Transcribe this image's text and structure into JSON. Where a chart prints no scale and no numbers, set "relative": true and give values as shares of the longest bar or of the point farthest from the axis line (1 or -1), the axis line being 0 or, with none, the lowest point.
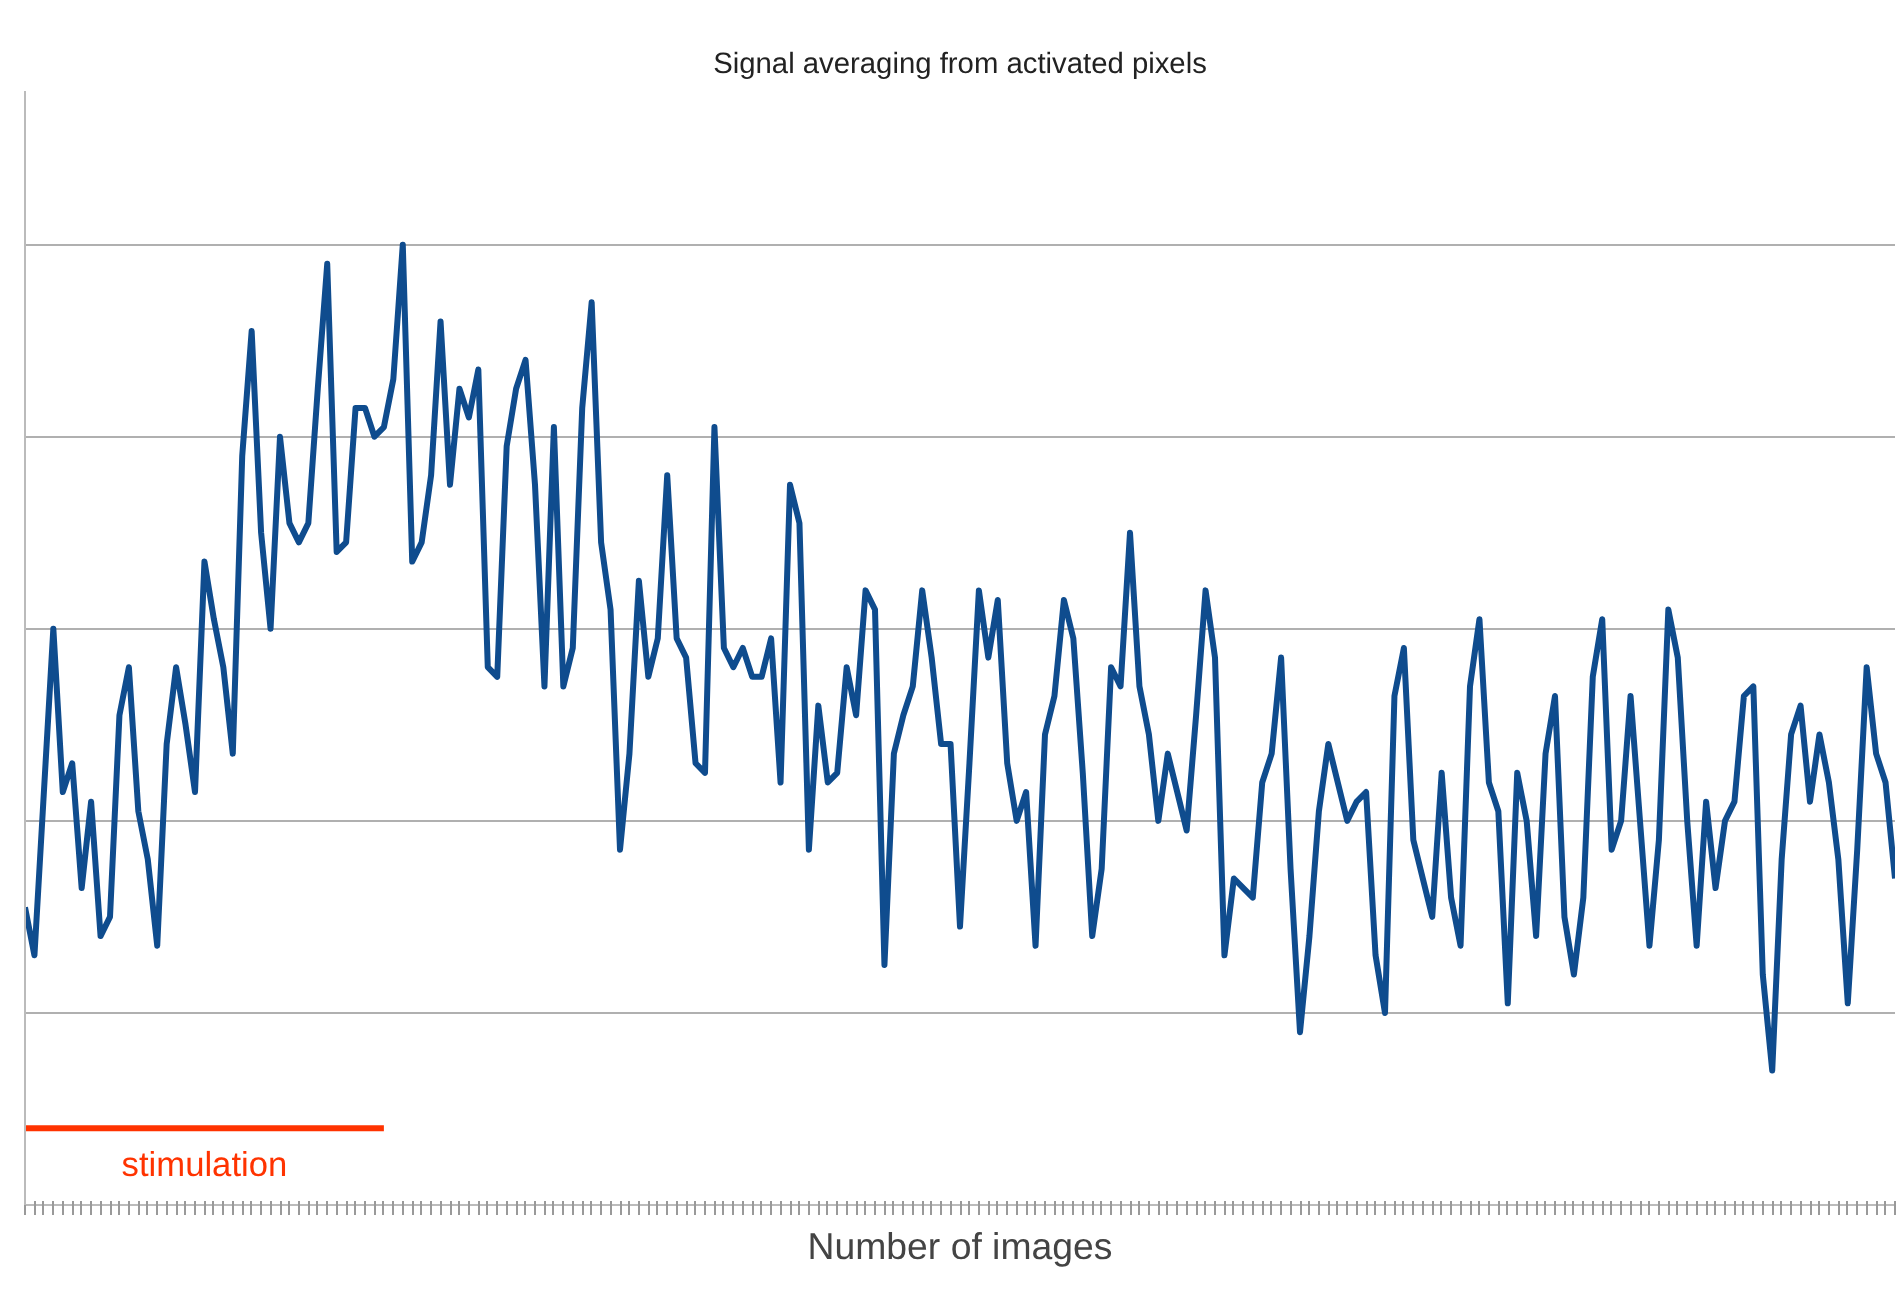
{
  "chart_data": {
    "type": "line",
    "title": "Signal averaging from activated pixels",
    "xlabel": "Number of images",
    "relative": true,
    "grid": "y",
    "line_style": "solid",
    "categories": [
      null,
      null,
      null,
      null,
      null,
      null,
      null,
      null,
      null,
      null,
      null,
      null,
      null,
      null,
      null,
      null,
      null,
      null,
      null,
      null,
      null,
      null,
      null,
      null,
      null,
      null,
      null,
      null,
      null,
      null,
      null,
      null,
      null,
      null,
      null,
      null,
      null,
      null,
      null,
      null,
      null,
      null,
      null,
      null,
      null,
      null,
      null,
      null,
      null,
      null,
      null,
      null,
      null,
      null,
      null,
      null,
      null,
      null,
      null,
      null,
      null,
      null,
      null,
      null,
      null,
      null,
      null,
      null,
      null,
      null,
      null,
      null,
      null,
      null,
      null,
      null,
      null,
      null,
      null,
      null,
      null,
      null,
      null,
      null,
      null,
      null,
      null,
      null,
      null,
      null,
      null,
      null,
      null,
      null,
      null,
      null,
      null,
      null,
      null,
      null,
      null,
      null,
      null,
      null,
      null,
      null,
      null,
      null,
      null,
      null,
      null,
      null,
      null,
      null,
      null,
      null,
      null,
      null,
      null,
      null,
      null,
      null,
      null,
      null,
      null,
      null,
      null,
      null,
      null,
      null,
      null,
      null,
      null,
      null,
      null,
      null,
      null,
      null,
      null,
      null,
      null,
      null,
      null,
      null,
      null,
      null,
      null,
      null,
      null,
      null,
      null,
      null,
      null,
      null,
      null,
      null,
      null,
      null,
      null,
      null,
      null,
      null,
      null,
      null,
      null,
      null,
      null,
      null,
      null,
      null,
      null,
      null,
      null,
      null,
      null,
      null,
      null,
      null,
      null,
      null,
      null,
      null,
      null,
      null,
      null,
      null,
      null,
      null,
      null,
      null,
      null,
      null,
      null,
      null,
      null,
      null,
      null,
      null,
      null
    ],
    "series": [
      {
        "color": "#0f4c8e",
        "values": [
          0.31,
          0.26,
          0.43,
          0.6,
          0.43,
          0.46,
          0.33,
          0.42,
          0.28,
          0.3,
          0.51,
          0.56,
          0.41,
          0.36,
          0.27,
          0.48,
          0.56,
          0.5,
          0.43,
          0.67,
          0.61,
          0.56,
          0.47,
          0.78,
          0.91,
          0.7,
          0.6,
          0.8,
          0.71,
          0.69,
          0.71,
          0.85,
          0.98,
          0.68,
          0.69,
          0.83,
          0.83,
          0.8,
          0.81,
          0.86,
          1.0,
          0.67,
          0.69,
          0.76,
          0.92,
          0.75,
          0.85,
          0.82,
          0.87,
          0.56,
          0.55,
          0.79,
          0.85,
          0.88,
          0.75,
          0.54,
          0.81,
          0.54,
          0.58,
          0.83,
          0.94,
          0.69,
          0.62,
          0.37,
          0.47,
          0.65,
          0.55,
          0.59,
          0.76,
          0.59,
          0.57,
          0.46,
          0.45,
          0.81,
          0.58,
          0.56,
          0.58,
          0.55,
          0.55,
          0.59,
          0.44,
          0.75,
          0.71,
          0.37,
          0.52,
          0.44,
          0.45,
          0.56,
          0.51,
          0.64,
          0.62,
          0.25,
          0.47,
          0.51,
          0.54,
          0.64,
          0.57,
          0.48,
          0.48,
          0.29,
          0.46,
          0.64,
          0.57,
          0.63,
          0.46,
          0.4,
          0.43,
          0.27,
          0.49,
          0.53,
          0.63,
          0.59,
          0.45,
          0.28,
          0.35,
          0.56,
          0.54,
          0.7,
          0.54,
          0.49,
          0.4,
          0.47,
          0.43,
          0.39,
          0.51,
          0.64,
          0.57,
          0.26,
          0.34,
          0.33,
          0.32,
          0.44,
          0.47,
          0.57,
          0.35,
          0.18,
          0.28,
          0.41,
          0.48,
          0.44,
          0.4,
          0.42,
          0.43,
          0.26,
          0.2,
          0.53,
          0.58,
          0.38,
          0.34,
          0.3,
          0.45,
          0.32,
          0.27,
          0.54,
          0.61,
          0.44,
          0.41,
          0.21,
          0.45,
          0.4,
          0.28,
          0.47,
          0.53,
          0.3,
          0.24,
          0.32,
          0.55,
          0.61,
          0.37,
          0.4,
          0.53,
          0.4,
          0.27,
          0.38,
          0.62,
          0.57,
          0.4,
          0.27,
          0.42,
          0.33,
          0.4,
          0.42,
          0.53,
          0.54,
          0.24,
          0.14,
          0.36,
          0.49,
          0.52,
          0.42,
          0.49,
          0.44,
          0.36,
          0.21,
          0.37,
          0.56,
          0.47,
          0.44,
          0.34
        ]
      },
      {
        "name": "stimulation",
        "color": "#ff3300",
        "values": [
          0.08,
          0.08,
          0.08,
          0.08,
          0.08,
          0.08,
          0.08,
          0.08,
          0.08,
          0.08,
          0.08,
          0.08,
          0.08,
          0.08,
          0.08,
          0.08,
          0.08,
          0.08,
          0.08,
          0.08,
          0.08,
          0.08,
          0.08,
          0.08,
          0.08,
          0.08,
          0.08,
          0.08,
          0.08,
          0.08,
          0.08,
          0.08,
          0.08,
          0.08,
          0.08,
          0.08,
          0.08,
          0.08,
          0.08,
          null,
          null,
          null,
          null,
          null,
          null,
          null,
          null,
          null,
          null,
          null,
          null,
          null,
          null,
          null,
          null,
          null,
          null,
          null,
          null,
          null,
          null,
          null,
          null,
          null,
          null,
          null,
          null,
          null,
          null,
          null,
          null,
          null,
          null,
          null,
          null,
          null,
          null,
          null,
          null,
          null,
          null,
          null,
          null,
          null,
          null,
          null,
          null,
          null,
          null,
          null,
          null,
          null,
          null,
          null,
          null,
          null,
          null,
          null,
          null,
          null,
          null,
          null,
          null,
          null,
          null,
          null,
          null,
          null,
          null,
          null,
          null,
          null,
          null,
          null,
          null,
          null,
          null,
          null,
          null,
          null,
          null,
          null,
          null,
          null,
          null,
          null,
          null,
          null,
          null,
          null,
          null,
          null,
          null,
          null,
          null,
          null,
          null,
          null,
          null,
          null,
          null,
          null,
          null,
          null,
          null,
          null,
          null,
          null,
          null,
          null,
          null,
          null,
          null,
          null,
          null,
          null,
          null,
          null,
          null,
          null,
          null,
          null,
          null,
          null,
          null,
          null,
          null,
          null,
          null,
          null,
          null,
          null,
          null,
          null,
          null,
          null,
          null,
          null,
          null,
          null,
          null,
          null,
          null,
          null,
          null,
          null,
          null,
          null,
          null,
          null,
          null,
          null,
          null,
          null,
          null,
          null,
          null,
          null,
          null
        ]
      }
    ]
  }
}
